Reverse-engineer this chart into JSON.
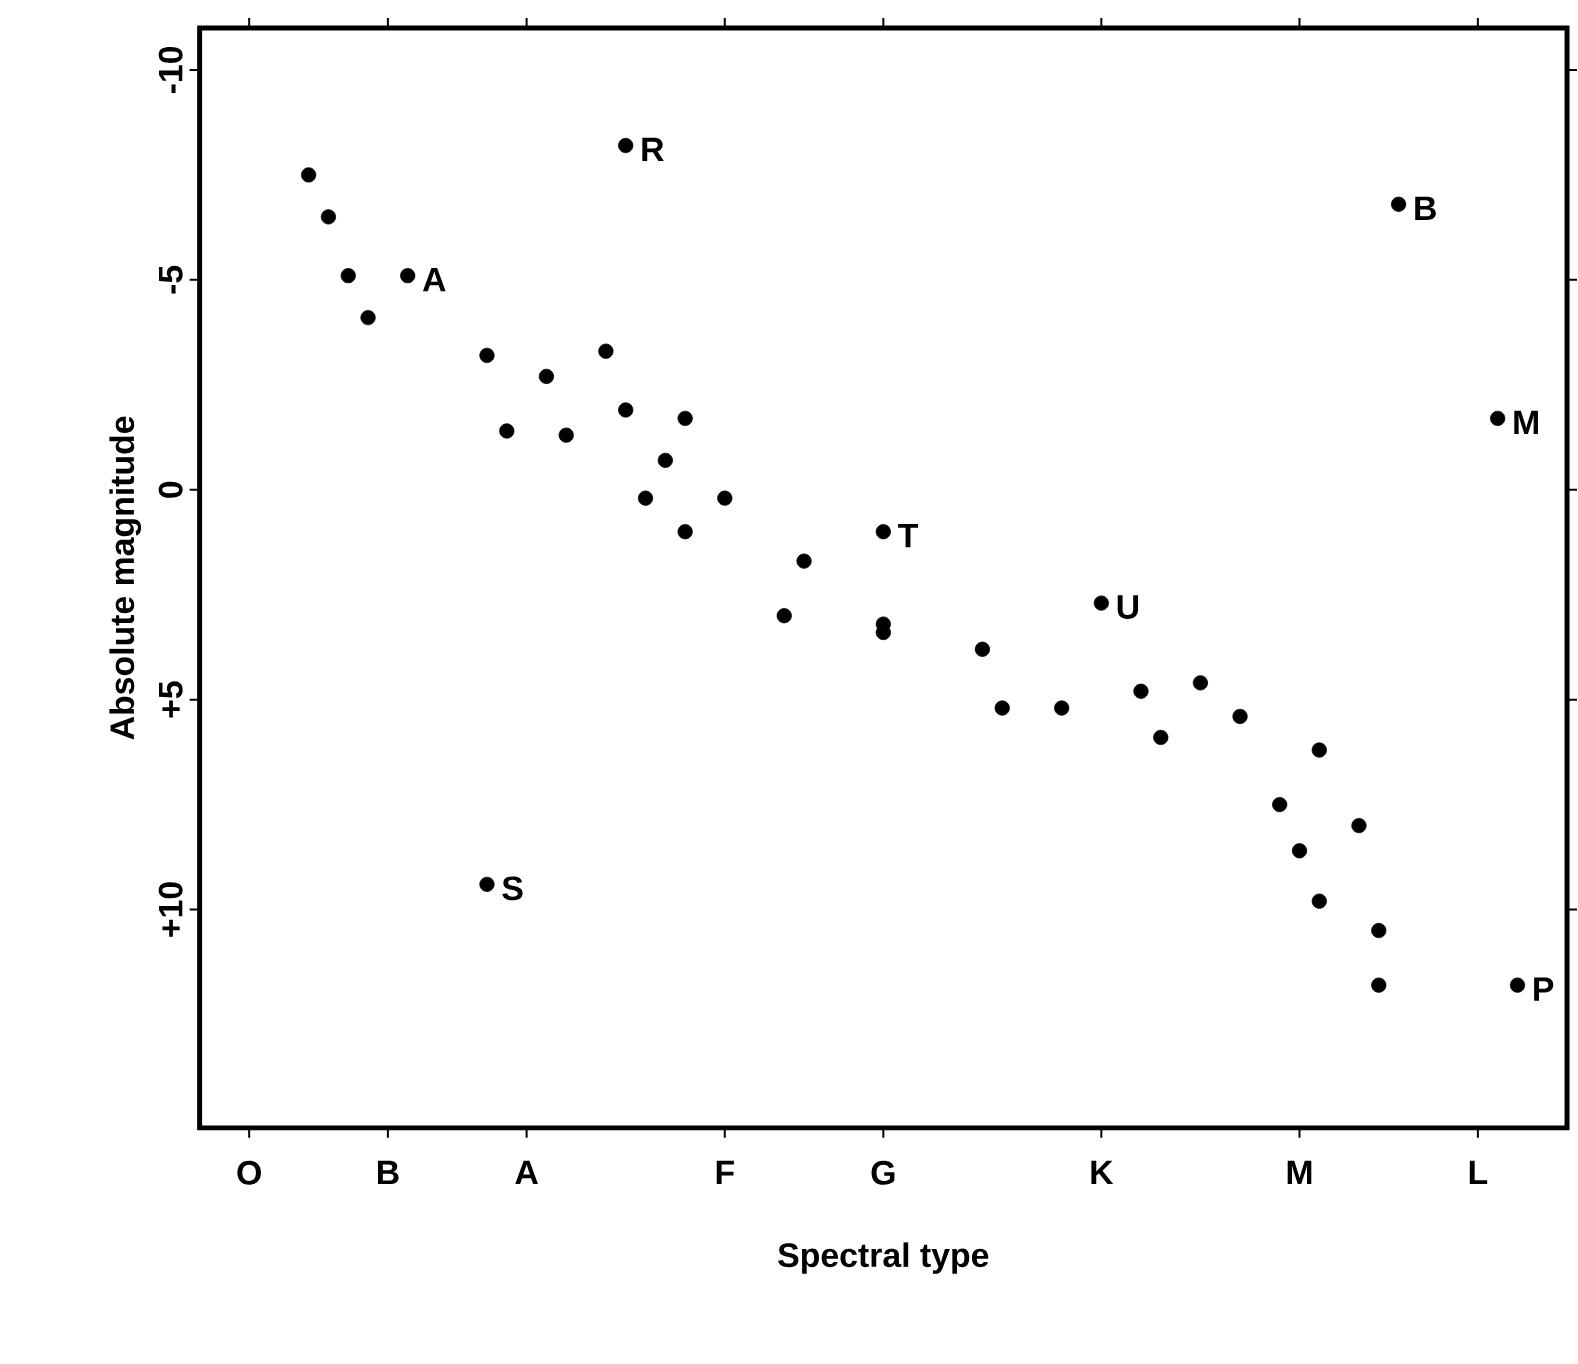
{
  "chart_data": {
    "type": "scatter",
    "xlabel": "Spectral type",
    "ylabel": "Absolute magnitude",
    "categories": [
      null,
      null,
      "O",
      null,
      null,
      null,
      null,
      null,
      null,
      "B",
      null,
      null,
      null,
      null,
      null,
      null,
      "A",
      null,
      null,
      null,
      null,
      null,
      null,
      null,
      null,
      null,
      "F",
      null,
      null,
      null,
      null,
      null,
      null,
      null,
      "G",
      null,
      null,
      null,
      null,
      null,
      null,
      null,
      null,
      null,
      null,
      "K",
      null,
      null,
      null,
      null,
      null,
      null,
      null,
      null,
      null,
      "M",
      null,
      null,
      null,
      null,
      null,
      null,
      null,
      null,
      "L",
      null,
      null,
      null,
      null
    ],
    "ylim": [
      15.2,
      -11
    ],
    "yticks": [
      -10,
      -5,
      0,
      {
        "value": 5,
        "label": "+5"
      },
      {
        "value": 10,
        "label": "+10"
      }
    ],
    "series": [
      {
        "color": "#000000",
        "values": [
          null,
          null,
          null,
          null,
          null,
          -7.5,
          -6.5,
          -5.1,
          -4.1,
          null,
          null,
          null,
          null,
          null,
          -3.2,
          -1.4,
          null,
          -2.7,
          -1.3,
          null,
          -3.3,
          -1.9,
          0.2,
          -0.7,
          1.0,
          null,
          0.2,
          null,
          null,
          3.0,
          1.7,
          null,
          null,
          null,
          3.2,
          null,
          null,
          null,
          null,
          3.8,
          5.2,
          null,
          null,
          5.2,
          null,
          null,
          null,
          4.8,
          5.9,
          null,
          4.6,
          null,
          5.4,
          null,
          7.5,
          8.6,
          9.8,
          null,
          8.0,
          10.5,
          null,
          null,
          null,
          null,
          null,
          null,
          null,
          null,
          null
        ]
      },
      {
        "color": "#000000",
        "values": [
          null,
          null,
          null,
          null,
          null,
          null,
          null,
          null,
          null,
          null,
          null,
          null,
          null,
          null,
          null,
          null,
          null,
          null,
          null,
          null,
          null,
          null,
          null,
          null,
          -1.7,
          null,
          null,
          null,
          null,
          null,
          null,
          null,
          null,
          null,
          3.4,
          null,
          null,
          null,
          null,
          null,
          null,
          null,
          null,
          null,
          null,
          null,
          null,
          null,
          null,
          null,
          null,
          null,
          null,
          null,
          null,
          null,
          6.2,
          null,
          null,
          11.8,
          null,
          null,
          null,
          null,
          null,
          null,
          null,
          null,
          null
        ]
      },
      {
        "name": "A",
        "color": "#000000",
        "values": [
          null,
          null,
          null,
          null,
          null,
          null,
          null,
          null,
          null,
          null,
          -5.1,
          null,
          null,
          null,
          null,
          null,
          null,
          null,
          null,
          null,
          null,
          null,
          null,
          null,
          null,
          null,
          null,
          null,
          null,
          null,
          null,
          null,
          null,
          null,
          null,
          null,
          null,
          null,
          null,
          null,
          null,
          null,
          null,
          null,
          null,
          null,
          null,
          null,
          null,
          null,
          null,
          null,
          null,
          null,
          null,
          null,
          null,
          null,
          null,
          null,
          null,
          null,
          null,
          null,
          null,
          null,
          null,
          null,
          null
        ]
      },
      {
        "name": "R",
        "color": "#000000",
        "values": [
          null,
          null,
          null,
          null,
          null,
          null,
          null,
          null,
          null,
          null,
          null,
          null,
          null,
          null,
          null,
          null,
          null,
          null,
          null,
          null,
          null,
          -8.2,
          null,
          null,
          null,
          null,
          null,
          null,
          null,
          null,
          null,
          null,
          null,
          null,
          null,
          null,
          null,
          null,
          null,
          null,
          null,
          null,
          null,
          null,
          null,
          null,
          null,
          null,
          null,
          null,
          null,
          null,
          null,
          null,
          null,
          null,
          null,
          null,
          null,
          null,
          null,
          null,
          null,
          null,
          null,
          null,
          null,
          null,
          null
        ]
      },
      {
        "name": "T",
        "color": "#000000",
        "values": [
          null,
          null,
          null,
          null,
          null,
          null,
          null,
          null,
          null,
          null,
          null,
          null,
          null,
          null,
          null,
          null,
          null,
          null,
          null,
          null,
          null,
          null,
          null,
          null,
          null,
          null,
          null,
          null,
          null,
          null,
          null,
          null,
          null,
          null,
          1.0,
          null,
          null,
          null,
          null,
          null,
          null,
          null,
          null,
          null,
          null,
          null,
          null,
          null,
          null,
          null,
          null,
          null,
          null,
          null,
          null,
          null,
          null,
          null,
          null,
          null,
          null,
          null,
          null,
          null,
          null,
          null,
          null,
          null,
          null
        ]
      },
      {
        "name": "U",
        "color": "#000000",
        "values": [
          null,
          null,
          null,
          null,
          null,
          null,
          null,
          null,
          null,
          null,
          null,
          null,
          null,
          null,
          null,
          null,
          null,
          null,
          null,
          null,
          null,
          null,
          null,
          null,
          null,
          null,
          null,
          null,
          null,
          null,
          null,
          null,
          null,
          null,
          null,
          null,
          null,
          null,
          null,
          null,
          null,
          null,
          null,
          null,
          null,
          2.7,
          null,
          null,
          null,
          null,
          null,
          null,
          null,
          null,
          null,
          null,
          null,
          null,
          null,
          null,
          null,
          null,
          null,
          null,
          null,
          null,
          null,
          null,
          null
        ]
      },
      {
        "name": "B",
        "color": "#000000",
        "values": [
          null,
          null,
          null,
          null,
          null,
          null,
          null,
          null,
          null,
          null,
          null,
          null,
          null,
          null,
          null,
          null,
          null,
          null,
          null,
          null,
          null,
          null,
          null,
          null,
          null,
          null,
          null,
          null,
          null,
          null,
          null,
          null,
          null,
          null,
          null,
          null,
          null,
          null,
          null,
          null,
          null,
          null,
          null,
          null,
          null,
          null,
          null,
          null,
          null,
          null,
          null,
          null,
          null,
          null,
          null,
          null,
          null,
          null,
          null,
          null,
          -6.8,
          null,
          null,
          null,
          null,
          null,
          null,
          null,
          null
        ]
      },
      {
        "name": "M",
        "color": "#000000",
        "values": [
          null,
          null,
          null,
          null,
          null,
          null,
          null,
          null,
          null,
          null,
          null,
          null,
          null,
          null,
          null,
          null,
          null,
          null,
          null,
          null,
          null,
          null,
          null,
          null,
          null,
          null,
          null,
          null,
          null,
          null,
          null,
          null,
          null,
          null,
          null,
          null,
          null,
          null,
          null,
          null,
          null,
          null,
          null,
          null,
          null,
          null,
          null,
          null,
          null,
          null,
          null,
          null,
          null,
          null,
          null,
          null,
          null,
          null,
          null,
          null,
          null,
          null,
          null,
          null,
          null,
          -1.7,
          null,
          null,
          null
        ]
      },
      {
        "name": "P",
        "color": "#000000",
        "values": [
          null,
          null,
          null,
          null,
          null,
          null,
          null,
          null,
          null,
          null,
          null,
          null,
          null,
          null,
          null,
          null,
          null,
          null,
          null,
          null,
          null,
          null,
          null,
          null,
          null,
          null,
          null,
          null,
          null,
          null,
          null,
          null,
          null,
          null,
          null,
          null,
          null,
          null,
          null,
          null,
          null,
          null,
          null,
          null,
          null,
          null,
          null,
          null,
          null,
          null,
          null,
          null,
          null,
          null,
          null,
          null,
          null,
          null,
          null,
          null,
          null,
          null,
          null,
          null,
          null,
          null,
          11.8,
          null,
          null
        ]
      },
      {
        "name": "S",
        "color": "#000000",
        "values": [
          null,
          null,
          null,
          null,
          null,
          null,
          null,
          null,
          null,
          null,
          null,
          null,
          null,
          null,
          9.4,
          null,
          null,
          null,
          null,
          null,
          null,
          null,
          null,
          null,
          null,
          null,
          null,
          null,
          null,
          null,
          null,
          null,
          null,
          null,
          null,
          null,
          null,
          null,
          null,
          null,
          null,
          null,
          null,
          null,
          null,
          null,
          null,
          null,
          null,
          null,
          null,
          null,
          null,
          null,
          null,
          null,
          null,
          null,
          null,
          null,
          null,
          null,
          null,
          null,
          null,
          null,
          null,
          null,
          null
        ]
      }
    ]
  }
}
